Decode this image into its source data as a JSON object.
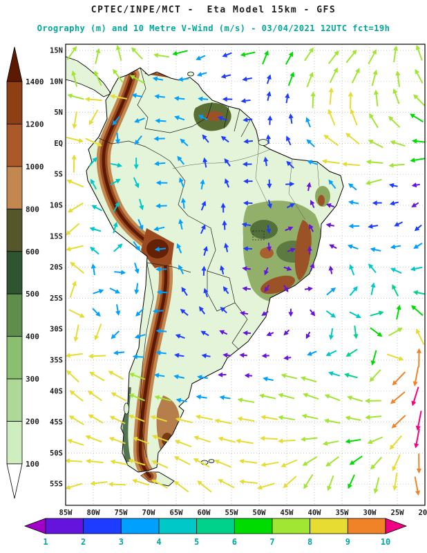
{
  "header": {
    "title": "CPTEC/INPE/MCT -  Eta Model 15km - GFS",
    "subtitle": "Orography (m) and 10 Metre V-Wind (m/s) - 03/04/2021 12UTC fct=19h"
  },
  "colors": {
    "title_text": "#1c1c1c",
    "subtitle_text": "#00a89a",
    "axis_text": "#1c1c1c",
    "wind_label_text": "#00a89a",
    "land": "#e4f4d8",
    "ocean": "#ffffff",
    "frame": "#000000",
    "grid": "#aab4aa"
  },
  "axes": {
    "lat_labels": [
      "15N",
      "10N",
      "5N",
      "EQ",
      "5S",
      "10S",
      "15S",
      "20S",
      "25S",
      "30S",
      "35S",
      "40S",
      "45S",
      "50S",
      "55S"
    ],
    "lon_labels": [
      "85W",
      "80W",
      "75W",
      "70W",
      "65W",
      "60W",
      "55W",
      "50W",
      "45W",
      "40W",
      "35W",
      "30W",
      "25W",
      "20W"
    ]
  },
  "elevation_colorbar": {
    "units": "m",
    "labels": [
      "1400",
      "1200",
      "1000",
      "800",
      "600",
      "500",
      "400",
      "300",
      "200",
      "100"
    ],
    "colors_top_to_bottom": [
      "#5c1a02",
      "#8e3f14",
      "#aa5a28",
      "#c2884f",
      "#55572b",
      "#2e5430",
      "#5f8d4b",
      "#8abf70",
      "#aed898",
      "#cfeec0",
      "#ffffff"
    ]
  },
  "wind_colorbar": {
    "units": "m/s",
    "labels": [
      "1",
      "2",
      "3",
      "4",
      "5",
      "6",
      "7",
      "8",
      "9",
      "10"
    ],
    "colors_left_to_right": [
      "#a000c8",
      "#6414dc",
      "#1e3cff",
      "#00a0ff",
      "#00c8c8",
      "#00d28c",
      "#00dc00",
      "#a0e632",
      "#e6dc32",
      "#f08228",
      "#f00082"
    ]
  },
  "arrows": {
    "grid_step": 31,
    "seed": 7
  },
  "chart_data": {
    "type": "heatmap",
    "title": "CPTEC/INPE/MCT -  Eta Model 15km - GFS",
    "subtitle": "Orography (m) and 10 Metre V-Wind (m/s) - 03/04/2021 12UTC fct=19h",
    "region": "South America",
    "x_ticks": [
      "85W",
      "80W",
      "75W",
      "70W",
      "65W",
      "60W",
      "55W",
      "50W",
      "45W",
      "40W",
      "35W",
      "30W",
      "25W",
      "20W"
    ],
    "y_ticks": [
      "15N",
      "10N",
      "5N",
      "EQ",
      "5S",
      "10S",
      "15S",
      "20S",
      "25S",
      "30S",
      "35S",
      "40S",
      "45S",
      "50S",
      "55S"
    ],
    "grid": "dotted",
    "legend_position": "left vertical colorbar (orography), bottom horizontal colorbar (wind speed)",
    "fields": [
      {
        "name": "Orography",
        "units": "m",
        "render": "filled shading over land",
        "levels": [
          100,
          200,
          300,
          400,
          500,
          600,
          800,
          1000,
          1200,
          1400
        ],
        "palette_top_to_bottom": [
          "#5c1a02",
          "#8e3f14",
          "#aa5a28",
          "#c2884f",
          "#55572b",
          "#2e5430",
          "#5f8d4b",
          "#8abf70",
          "#aed898",
          "#cfeec0",
          "#ffffff"
        ]
      },
      {
        "name": "10 Metre V-Wind",
        "units": "m/s",
        "render": "colored vector arrows on regular grid",
        "levels": [
          1,
          2,
          3,
          4,
          5,
          6,
          7,
          8,
          9,
          10
        ],
        "palette_low_to_high": [
          "#a000c8",
          "#6414dc",
          "#1e3cff",
          "#00a0ff",
          "#00c8c8",
          "#00d28c",
          "#00dc00",
          "#a0e632",
          "#e6dc32",
          "#f08228",
          "#f00082"
        ]
      }
    ]
  }
}
